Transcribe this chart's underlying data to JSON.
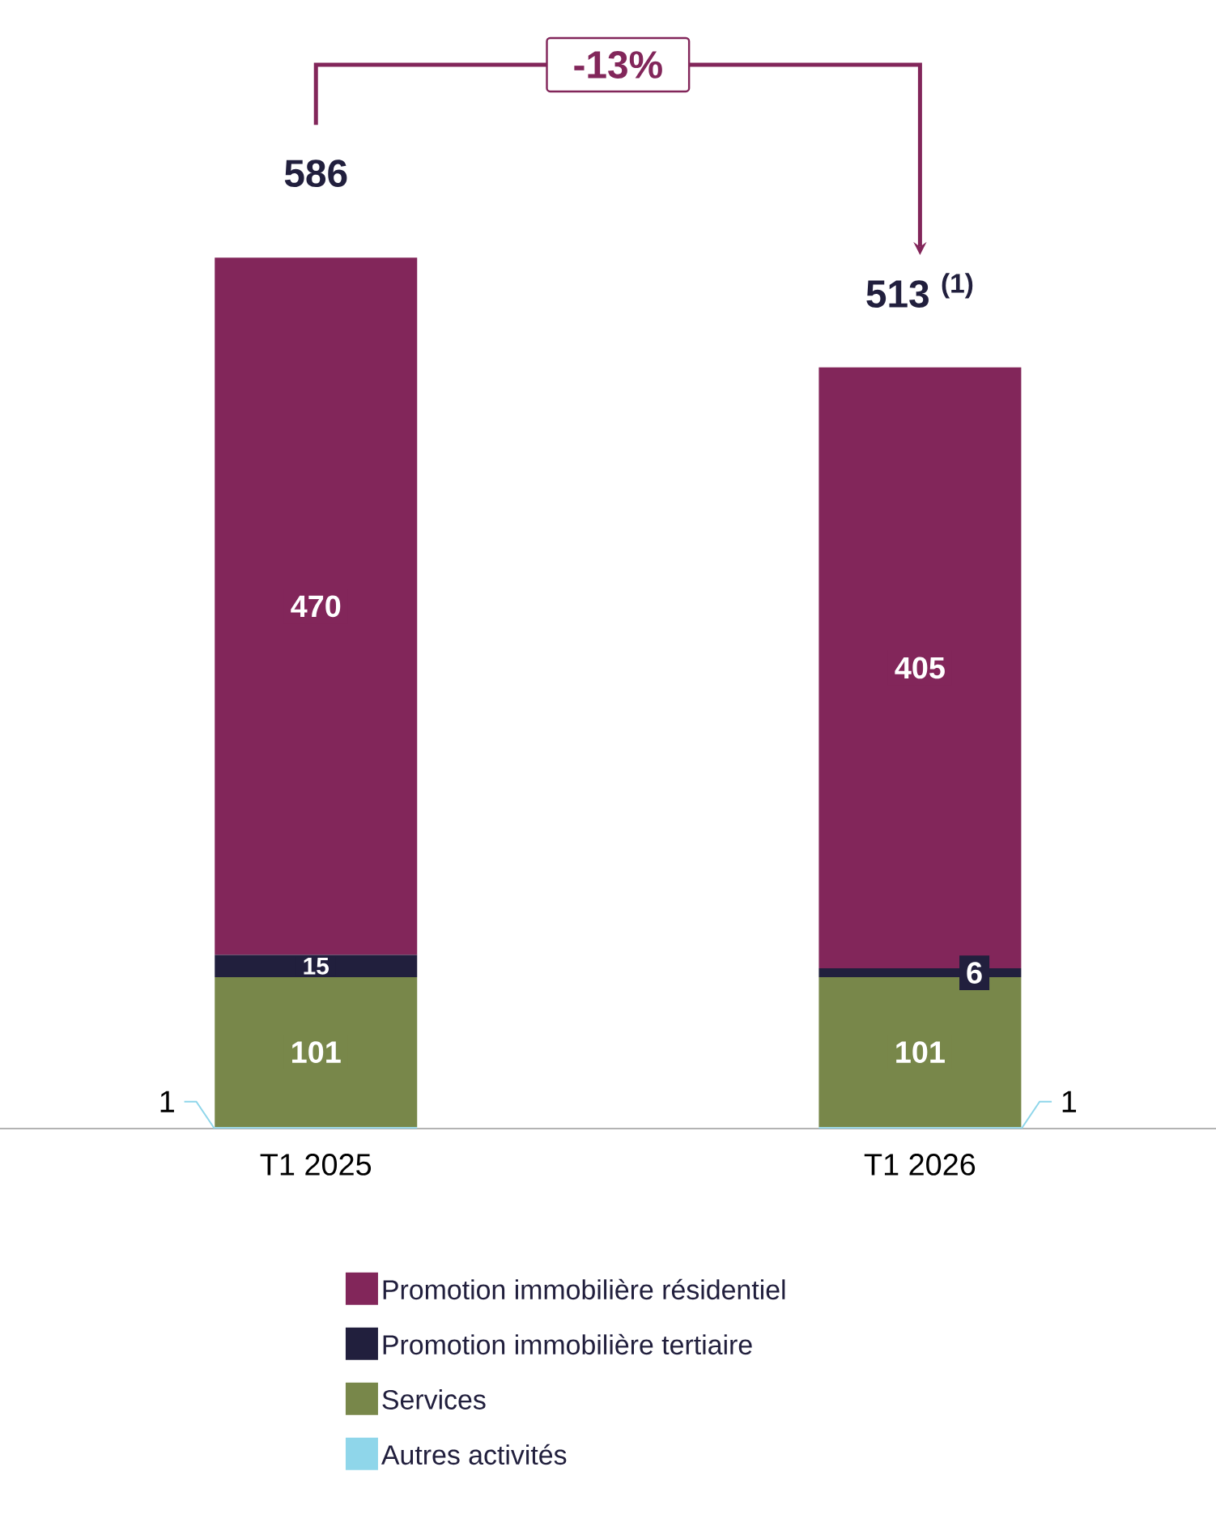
{
  "chart_data": {
    "type": "bar",
    "stacked": true,
    "categories": [
      "T1 2025",
      "T1 2026"
    ],
    "series": [
      {
        "name": "Autres activités",
        "color": "#8fd6ea",
        "values": [
          1,
          1
        ]
      },
      {
        "name": "Services",
        "color": "#78874a",
        "values": [
          101,
          101
        ]
      },
      {
        "name": "Promotion immobilière tertiaire",
        "color": "#211f3d",
        "values": [
          15,
          6
        ]
      },
      {
        "name": "Promotion immobilière résidentiel",
        "color": "#82265a",
        "values": [
          470,
          405
        ]
      }
    ],
    "data_labels": true,
    "totals": [
      "586",
      "513 $^{(1)}$"
    ],
    "annotations": [
      "-13%"
    ],
    "legend": "bottom"
  }
}
